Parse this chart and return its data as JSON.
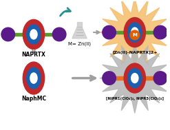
{
  "bg_color": "#ffffff",
  "naprtx_label": "NAPRTX",
  "naphmc_label": "NaphMC",
  "m_label": "M= Zn(II)",
  "zn_naprtx_label": "[Zn(II)-NAPRTX]2+",
  "nipr_label": "[NiPR1(ClO₄)₂, NiPR3(ClO₄)₂]",
  "m_center": "M",
  "axle_color": "#5a9a2a",
  "axle_color2": "#e87020",
  "stopper_color": "#5a1a8a",
  "ring_outer_color": "#c0282a",
  "ring_inner_color": "#1a60b0",
  "glow_color": "#f5c070",
  "glow_color2": "#b8b8b8",
  "arrow_teal": "#2a9090",
  "arrow_gray": "#a0a0a0",
  "flask_color": "#c8c8c8",
  "flask_text_color": "#505050"
}
